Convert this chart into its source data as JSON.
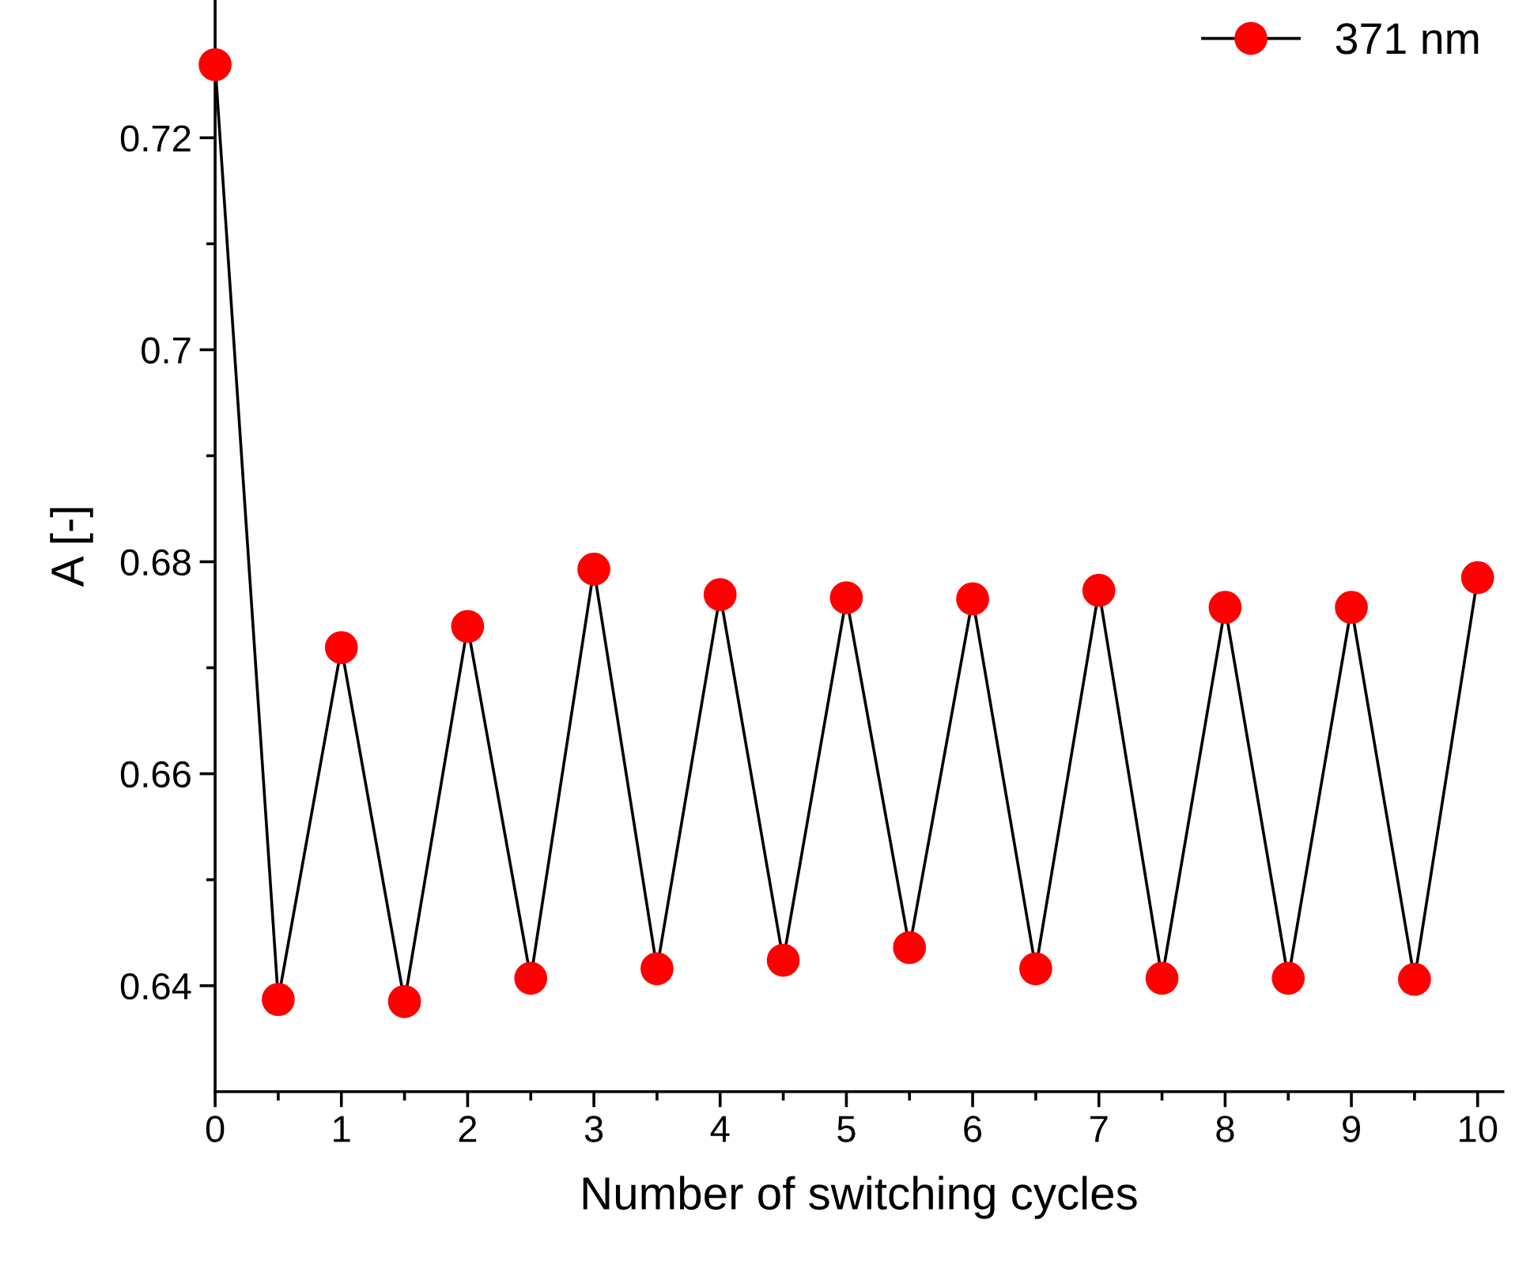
{
  "chart_data": {
    "type": "line",
    "xlabel": "Number of switching cycles",
    "ylabel": "A [-]",
    "x": [
      0,
      0.5,
      1,
      1.5,
      2,
      2.5,
      3,
      3.5,
      4,
      4.5,
      5,
      5.5,
      6,
      6.5,
      7,
      7.5,
      8,
      8.5,
      9,
      9.5,
      10
    ],
    "series": [
      {
        "name": "371 nm",
        "color": "#ff0000",
        "values": [
          0.7269,
          0.6387,
          0.6719,
          0.6385,
          0.6739,
          0.6407,
          0.6793,
          0.6416,
          0.6769,
          0.6424,
          0.6766,
          0.6436,
          0.6765,
          0.6416,
          0.6773,
          0.6407,
          0.6757,
          0.6407,
          0.6757,
          0.6406,
          0.6785
        ]
      }
    ],
    "xlim": [
      0,
      10.2
    ],
    "xticks": [
      0,
      1,
      2,
      3,
      4,
      5,
      6,
      7,
      8,
      9,
      10
    ],
    "ylim": [
      0.63,
      0.733
    ],
    "yticks": [
      0.64,
      0.66,
      0.68,
      0.7,
      0.72
    ],
    "marker": "circle",
    "line_style": "solid",
    "grid": false,
    "legend": "top right"
  }
}
